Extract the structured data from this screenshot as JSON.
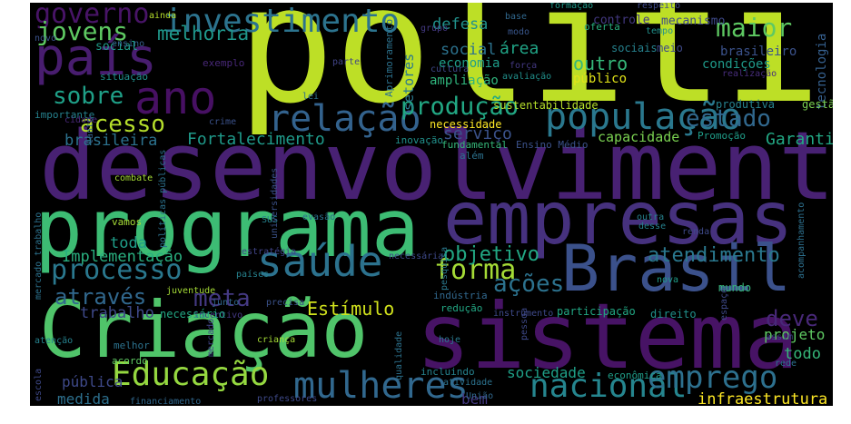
{
  "words": [
    {
      "text": "política",
      "color": "#bddf26"
    },
    {
      "text": "desenvolvimento",
      "color": "#482173"
    },
    {
      "text": "programa",
      "color": "#3dbc74"
    },
    {
      "text": "Criação",
      "color": "#50c46a"
    },
    {
      "text": "sistema",
      "color": "#471365"
    },
    {
      "text": "empresas",
      "color": "#46317e"
    },
    {
      "text": "Brasil",
      "color": "#3b518b"
    },
    {
      "text": "país",
      "color": "#481d6f"
    },
    {
      "text": "saúde",
      "color": "#2c728e"
    },
    {
      "text": "população",
      "color": "#2a788e"
    },
    {
      "text": "ano",
      "color": "#471063"
    },
    {
      "text": "relação",
      "color": "#33628d"
    },
    {
      "text": "investimento",
      "color": "#2c738e"
    },
    {
      "text": "governo",
      "color": "#481467"
    },
    {
      "text": "jovens",
      "color": "#5ec962"
    },
    {
      "text": "mulheres",
      "color": "#31688e"
    },
    {
      "text": "nacional",
      "color": "#25858e"
    },
    {
      "text": "Educação",
      "color": "#95d840"
    },
    {
      "text": "emprego",
      "color": "#2d708e"
    },
    {
      "text": "processo",
      "color": "#2a788e"
    },
    {
      "text": "forma",
      "color": "#a5db36"
    },
    {
      "text": "produção",
      "color": "#22a884"
    },
    {
      "text": "estado",
      "color": "#31688e"
    },
    {
      "text": "acesso",
      "color": "#b5de2b"
    },
    {
      "text": "sobre",
      "color": "#1fa088"
    },
    {
      "text": "através",
      "color": "#31688e"
    },
    {
      "text": "meta",
      "color": "#443983"
    },
    {
      "text": "maior",
      "color": "#5ec962"
    },
    {
      "text": "melhoria",
      "color": "#1f988b"
    },
    {
      "text": "ações",
      "color": "#2c728e"
    },
    {
      "text": "atendimento",
      "color": "#2a788e"
    },
    {
      "text": "deve",
      "color": "#482878"
    },
    {
      "text": "objetivo",
      "color": "#22a884"
    },
    {
      "text": "Estímulo",
      "color": "#d0e11c"
    },
    {
      "text": "Fortalecimento",
      "color": "#1f9a8a"
    },
    {
      "text": "Garantia",
      "color": "#22a884"
    },
    {
      "text": "serviço",
      "color": "#3b528b"
    },
    {
      "text": "outro",
      "color": "#35b779"
    },
    {
      "text": "defesa",
      "color": "#21918c"
    },
    {
      "text": "social",
      "color": "#2c728e"
    },
    {
      "text": "área",
      "color": "#20a486"
    },
    {
      "text": "toda",
      "color": "#1f9e89"
    },
    {
      "text": "Implementação",
      "color": "#29af7f"
    },
    {
      "text": "trabalho",
      "color": "#3e4989"
    },
    {
      "text": "brasileira",
      "color": "#2c728e"
    },
    {
      "text": "capacidade",
      "color": "#7ad151"
    },
    {
      "text": "infraestrutura",
      "color": "#fde725"
    },
    {
      "text": "sociedade",
      "color": "#1fa088"
    },
    {
      "text": "bem",
      "color": "#443983"
    },
    {
      "text": "pública",
      "color": "#3e4989"
    },
    {
      "text": "medida",
      "color": "#2d708e"
    },
    {
      "text": "todo",
      "color": "#35b779"
    },
    {
      "text": "projeto",
      "color": "#5ec962"
    },
    {
      "text": "setores",
      "color": "#2a788e"
    },
    {
      "text": "mecanismo",
      "color": "#3e4989"
    },
    {
      "text": "controle",
      "color": "#443983"
    },
    {
      "text": "tecnologia",
      "color": "#355f8d"
    },
    {
      "text": "brasileiro",
      "color": "#3b528b"
    },
    {
      "text": "condições",
      "color": "#1f9a8a"
    },
    {
      "text": "social",
      "color": "#1f9e89"
    },
    {
      "text": "sociais",
      "color": "#26828e"
    },
    {
      "text": "meio",
      "color": "#3e4989"
    },
    {
      "text": "economia",
      "color": "#1f9e89"
    },
    {
      "text": "ampliação",
      "color": "#2fb47c"
    },
    {
      "text": "público",
      "color": "#e2e418"
    },
    {
      "text": "produtiva",
      "color": "#26828e"
    },
    {
      "text": "gestão",
      "color": "#7ad151"
    },
    {
      "text": "sustentabilidade",
      "color": "#b5de2b"
    },
    {
      "text": "necessidade",
      "color": "#fde725"
    },
    {
      "text": "inovação",
      "color": "#21918c"
    },
    {
      "text": "fundamental",
      "color": "#35b779"
    },
    {
      "text": "Ensino Médio",
      "color": "#3b528b"
    },
    {
      "text": "Promoção",
      "color": "#1f9e89"
    },
    {
      "text": "além",
      "color": "#2c728e"
    },
    {
      "text": "importante",
      "color": "#26828e"
    },
    {
      "text": "tanto",
      "color": "#355f8d"
    },
    {
      "text": "cidade",
      "color": "#482878"
    },
    {
      "text": "crime",
      "color": "#3b528b"
    },
    {
      "text": "lei",
      "color": "#2c728e"
    },
    {
      "text": "Aprimoramento",
      "color": "#2c728e"
    },
    {
      "text": "situação",
      "color": "#21918c"
    },
    {
      "text": "exemplo",
      "color": "#482878"
    },
    {
      "text": "parte",
      "color": "#414487"
    },
    {
      "text": "cultura",
      "color": "#3e4989"
    },
    {
      "text": "força",
      "color": "#443983"
    },
    {
      "text": "avaliação",
      "color": "#21918c"
    },
    {
      "text": "realização",
      "color": "#472d7b"
    },
    {
      "text": "ensino",
      "color": "#355f8d"
    },
    {
      "text": "novo",
      "color": "#3b528b"
    },
    {
      "text": "ainda",
      "color": "#b5de2b"
    },
    {
      "text": "grupo",
      "color": "#443983"
    },
    {
      "text": "modo",
      "color": "#39568c"
    },
    {
      "text": "base",
      "color": "#31688e"
    },
    {
      "text": "formação",
      "color": "#1f9a8a"
    },
    {
      "text": "respeito",
      "color": "#3e4989"
    },
    {
      "text": "oferta",
      "color": "#29af7f"
    },
    {
      "text": "tempo",
      "color": "#21918c"
    },
    {
      "text": "combate",
      "color": "#a5db36"
    },
    {
      "text": "SUS",
      "color": "#26828e"
    },
    {
      "text": "políticas públicas",
      "color": "#2c728e"
    },
    {
      "text": "universidades",
      "color": "#3b528b"
    },
    {
      "text": "vamos",
      "color": "#a5db36"
    },
    {
      "text": "evasão",
      "color": "#2c728e"
    },
    {
      "text": "estratégia",
      "color": "#414487"
    },
    {
      "text": "necessária",
      "color": "#3e4989"
    },
    {
      "text": "pesquisa",
      "color": "#2a788e"
    },
    {
      "text": "outra",
      "color": "#26828e"
    },
    {
      "text": "desse",
      "color": "#26828e"
    },
    {
      "text": "renda",
      "color": "#3e4989"
    },
    {
      "text": "acompanhamento",
      "color": "#2d708e"
    },
    {
      "text": "mercado trabalho",
      "color": "#2c728e"
    },
    {
      "text": "países",
      "color": "#26828e"
    },
    {
      "text": "juventude",
      "color": "#a5db36"
    },
    {
      "text": "junto",
      "color": "#31688e"
    },
    {
      "text": "precisa",
      "color": "#3b528b"
    },
    {
      "text": "indústria",
      "color": "#31688e"
    },
    {
      "text": "nova",
      "color": "#1f9e89"
    },
    {
      "text": "mundo",
      "color": "#35b779"
    },
    {
      "text": "incentivo",
      "color": "#443983"
    },
    {
      "text": "necessário",
      "color": "#22a884"
    },
    {
      "text": "redução",
      "color": "#22a884"
    },
    {
      "text": "instrumento",
      "color": "#3e4989"
    },
    {
      "text": "participação",
      "color": "#22a884"
    },
    {
      "text": "direito",
      "color": "#21918c"
    },
    {
      "text": "espaço",
      "color": "#3e4989"
    },
    {
      "text": "assim",
      "color": "#3e4989"
    },
    {
      "text": "atenção",
      "color": "#26828e"
    },
    {
      "text": "melhor",
      "color": "#2c728e"
    },
    {
      "text": "mercado",
      "color": "#414487"
    },
    {
      "text": "criança",
      "color": "#a5db36"
    },
    {
      "text": "hoje",
      "color": "#2a788e"
    },
    {
      "text": "pessoa",
      "color": "#3e4989"
    },
    {
      "text": "acordo",
      "color": "#5ec962"
    },
    {
      "text": "qualidade",
      "color": "#2c728e"
    },
    {
      "text": "incluindo",
      "color": "#26828e"
    },
    {
      "text": "econômica",
      "color": "#1f9e89"
    },
    {
      "text": "rede",
      "color": "#2c728e"
    },
    {
      "text": "escola",
      "color": "#3e4989"
    },
    {
      "text": "financiamento",
      "color": "#31688e"
    },
    {
      "text": "professores",
      "color": "#3e4989"
    },
    {
      "text": "atividade",
      "color": "#2c728e"
    },
    {
      "text": "União",
      "color": "#31688e"
    }
  ]
}
